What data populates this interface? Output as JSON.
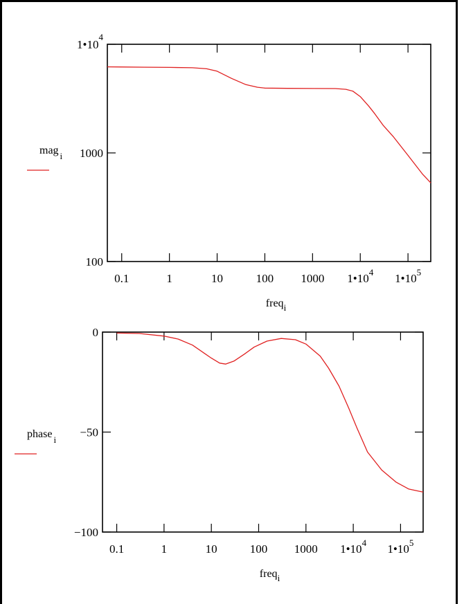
{
  "colors": {
    "frame": "#000000",
    "plot_box": "#000000",
    "trace": "#e02020",
    "background": "#ffffff"
  },
  "chart_data": [
    {
      "type": "line",
      "x_scale": "log",
      "y_scale": "log",
      "xlim": [
        0.05,
        300000
      ],
      "ylim": [
        100,
        10000
      ],
      "x_ticks": [
        {
          "value": 0.1,
          "text": "0.1"
        },
        {
          "value": 1,
          "text": "1"
        },
        {
          "value": 10,
          "text": "10"
        },
        {
          "value": 100,
          "text": "100"
        },
        {
          "value": 1000,
          "text": "1000"
        },
        {
          "value": 10000,
          "text": "1•10",
          "sup": "4"
        },
        {
          "value": 100000,
          "text": "1•10",
          "sup": "5"
        }
      ],
      "y_ticks": [
        {
          "value": 10000,
          "text": "1•10",
          "sup": "4"
        },
        {
          "value": 1000,
          "text": "1000"
        },
        {
          "value": 100,
          "text": "100"
        }
      ],
      "xlabel": {
        "base": "freq",
        "sub": "i"
      },
      "ylabel": {
        "base": "mag",
        "sub": "i"
      },
      "series": [
        {
          "legend_color": "#e02020",
          "x": [
            0.05,
            0.1,
            0.3,
            1,
            3,
            6,
            10,
            20,
            40,
            70,
            100,
            300,
            1000,
            3000,
            5000,
            7000,
            10000,
            15000,
            20000,
            30000,
            50000,
            100000,
            200000,
            300000
          ],
          "y": [
            6200,
            6180,
            6150,
            6130,
            6080,
            5950,
            5650,
            4850,
            4250,
            4020,
            3950,
            3930,
            3920,
            3910,
            3850,
            3700,
            3300,
            2700,
            2300,
            1800,
            1400,
            950,
            640,
            530
          ]
        }
      ]
    },
    {
      "type": "line",
      "x_scale": "log",
      "y_scale": "linear",
      "xlim": [
        0.05,
        300000
      ],
      "ylim": [
        -100,
        0
      ],
      "x_ticks": [
        {
          "value": 0.1,
          "text": "0.1"
        },
        {
          "value": 1,
          "text": "1"
        },
        {
          "value": 10,
          "text": "10"
        },
        {
          "value": 100,
          "text": "100"
        },
        {
          "value": 1000,
          "text": "1000"
        },
        {
          "value": 10000,
          "text": "1•10",
          "sup": "4"
        },
        {
          "value": 100000,
          "text": "1•10",
          "sup": "5"
        }
      ],
      "y_ticks": [
        {
          "value": 0,
          "text": "0"
        },
        {
          "value": -50,
          "text": "−50"
        },
        {
          "value": -100,
          "text": "−100"
        }
      ],
      "xlabel": {
        "base": "freq",
        "sub": "i"
      },
      "ylabel": {
        "base": "phase",
        "sub": "i"
      },
      "series": [
        {
          "legend_color": "#e02020",
          "x": [
            0.1,
            0.3,
            1,
            2,
            4,
            7,
            10,
            15,
            20,
            30,
            50,
            80,
            150,
            300,
            600,
            1000,
            2000,
            3000,
            5000,
            8000,
            12000,
            20000,
            40000,
            80000,
            150000,
            300000
          ],
          "y": [
            -0.5,
            -0.7,
            -2,
            -3.5,
            -6.5,
            -10.5,
            -13,
            -15.5,
            -16,
            -14.5,
            -11,
            -7.5,
            -4.5,
            -3.2,
            -3.8,
            -6,
            -12,
            -18,
            -27,
            -38,
            -48,
            -60,
            -69,
            -75,
            -78.5,
            -80
          ]
        }
      ]
    }
  ]
}
